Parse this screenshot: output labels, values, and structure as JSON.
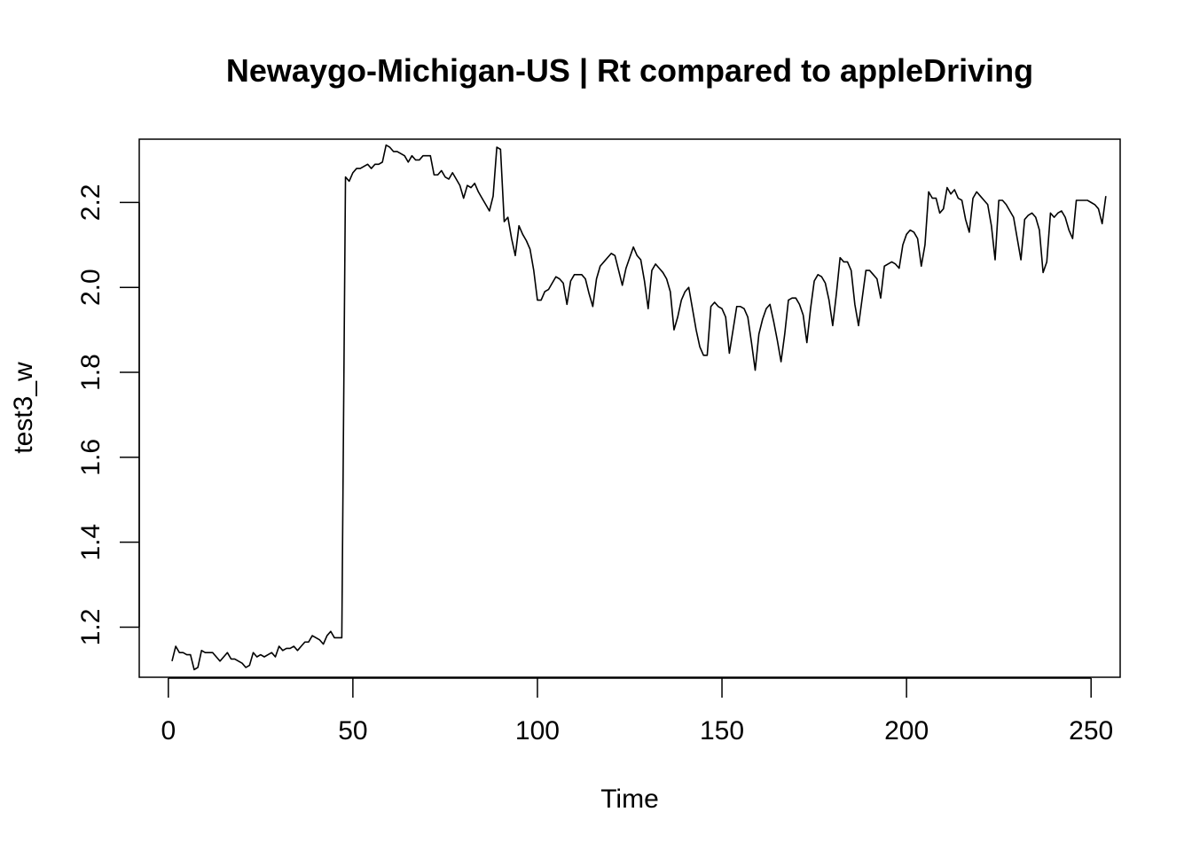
{
  "chart_data": {
    "type": "line",
    "title": "Newaygo-Michigan-US | Rt compared to appleDriving",
    "xlabel": "Time",
    "ylabel": "test3_w",
    "xlim": [
      -7.88,
      257.88
    ],
    "ylim": [
      1.082,
      2.349
    ],
    "x_ticks": [
      0,
      50,
      100,
      150,
      200,
      250
    ],
    "y_ticks": [
      1.2,
      1.4,
      1.6,
      1.8,
      2.0,
      2.2
    ],
    "x_tick_labels": [
      "0",
      "50",
      "100",
      "150",
      "200",
      "250"
    ],
    "y_tick_labels": [
      "1.2",
      "1.4",
      "1.6",
      "1.8",
      "2.0",
      "2.2"
    ],
    "grid": false,
    "legend": "none",
    "line_color": "#000000",
    "series": [
      {
        "x_start": 1,
        "values": [
          1.12,
          1.155,
          1.14,
          1.14,
          1.135,
          1.135,
          1.1,
          1.105,
          1.145,
          1.14,
          1.14,
          1.14,
          1.13,
          1.12,
          1.13,
          1.14,
          1.125,
          1.125,
          1.12,
          1.115,
          1.105,
          1.11,
          1.14,
          1.13,
          1.135,
          1.13,
          1.135,
          1.14,
          1.13,
          1.155,
          1.145,
          1.15,
          1.15,
          1.155,
          1.145,
          1.155,
          1.165,
          1.165,
          1.18,
          1.175,
          1.17,
          1.16,
          1.18,
          1.19,
          1.175,
          1.175,
          1.175,
          2.26,
          2.25,
          2.27,
          2.28,
          2.28,
          2.285,
          2.29,
          2.28,
          2.29,
          2.29,
          2.295,
          2.335,
          2.33,
          2.32,
          2.32,
          2.315,
          2.31,
          2.295,
          2.31,
          2.3,
          2.3,
          2.31,
          2.31,
          2.31,
          2.265,
          2.265,
          2.275,
          2.26,
          2.255,
          2.27,
          2.255,
          2.24,
          2.21,
          2.24,
          2.235,
          2.245,
          2.225,
          2.21,
          2.195,
          2.18,
          2.215,
          2.33,
          2.325,
          2.155,
          2.165,
          2.115,
          2.075,
          2.145,
          2.125,
          2.11,
          2.09,
          2.04,
          1.97,
          1.97,
          1.99,
          1.995,
          2.01,
          2.025,
          2.02,
          2.01,
          1.96,
          2.015,
          2.03,
          2.03,
          2.03,
          2.02,
          1.985,
          1.955,
          2.02,
          2.05,
          2.06,
          2.07,
          2.08,
          2.075,
          2.04,
          2.005,
          2.045,
          2.07,
          2.095,
          2.075,
          2.065,
          2.015,
          1.95,
          2.04,
          2.055,
          2.045,
          2.035,
          2.02,
          1.99,
          1.9,
          1.93,
          1.97,
          1.99,
          2.0,
          1.95,
          1.9,
          1.86,
          1.84,
          1.84,
          1.955,
          1.965,
          1.955,
          1.95,
          1.93,
          1.845,
          1.9,
          1.955,
          1.955,
          1.95,
          1.93,
          1.87,
          1.805,
          1.89,
          1.925,
          1.95,
          1.96,
          1.92,
          1.875,
          1.825,
          1.89,
          1.97,
          1.975,
          1.975,
          1.96,
          1.935,
          1.87,
          1.95,
          2.015,
          2.03,
          2.025,
          2.01,
          1.97,
          1.91,
          1.985,
          2.07,
          2.06,
          2.06,
          2.04,
          1.96,
          1.91,
          1.975,
          2.04,
          2.04,
          2.03,
          2.02,
          1.975,
          2.05,
          2.055,
          2.06,
          2.055,
          2.045,
          2.1,
          2.125,
          2.135,
          2.13,
          2.115,
          2.05,
          2.1,
          2.225,
          2.21,
          2.21,
          2.175,
          2.185,
          2.235,
          2.22,
          2.23,
          2.21,
          2.205,
          2.16,
          2.13,
          2.21,
          2.225,
          2.215,
          2.205,
          2.195,
          2.145,
          2.065,
          2.205,
          2.205,
          2.195,
          2.18,
          2.165,
          2.115,
          2.065,
          2.16,
          2.17,
          2.175,
          2.165,
          2.135,
          2.035,
          2.06,
          2.175,
          2.165,
          2.175,
          2.18,
          2.165,
          2.135,
          2.115,
          2.205,
          2.205,
          2.205,
          2.205,
          2.2,
          2.195,
          2.185,
          2.15,
          2.215
        ]
      }
    ]
  }
}
